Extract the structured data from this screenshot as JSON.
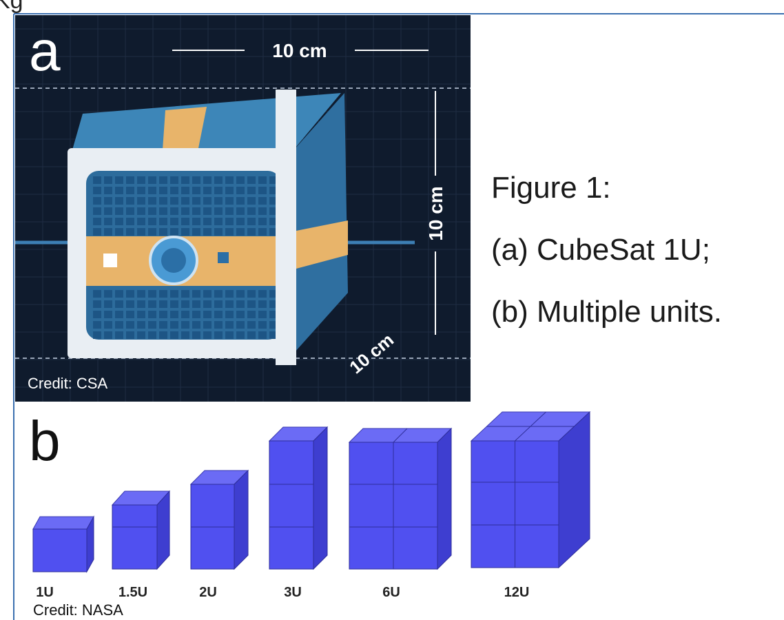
{
  "header": {
    "title": "Kg"
  },
  "panel_a": {
    "letter": "a",
    "dimensions": [
      "10 cm",
      "10 cm",
      "10 cm"
    ],
    "credit": "Credit: CSA"
  },
  "caption": {
    "lines": [
      "Figure 1:",
      "(a) CubeSat 1U;",
      "(b) Multiple units."
    ]
  },
  "panel_b": {
    "letter": "b",
    "units": [
      "1U",
      "1.5U",
      "2U",
      "3U",
      "6U",
      "12U"
    ],
    "credit": "Credit: NASA"
  }
}
